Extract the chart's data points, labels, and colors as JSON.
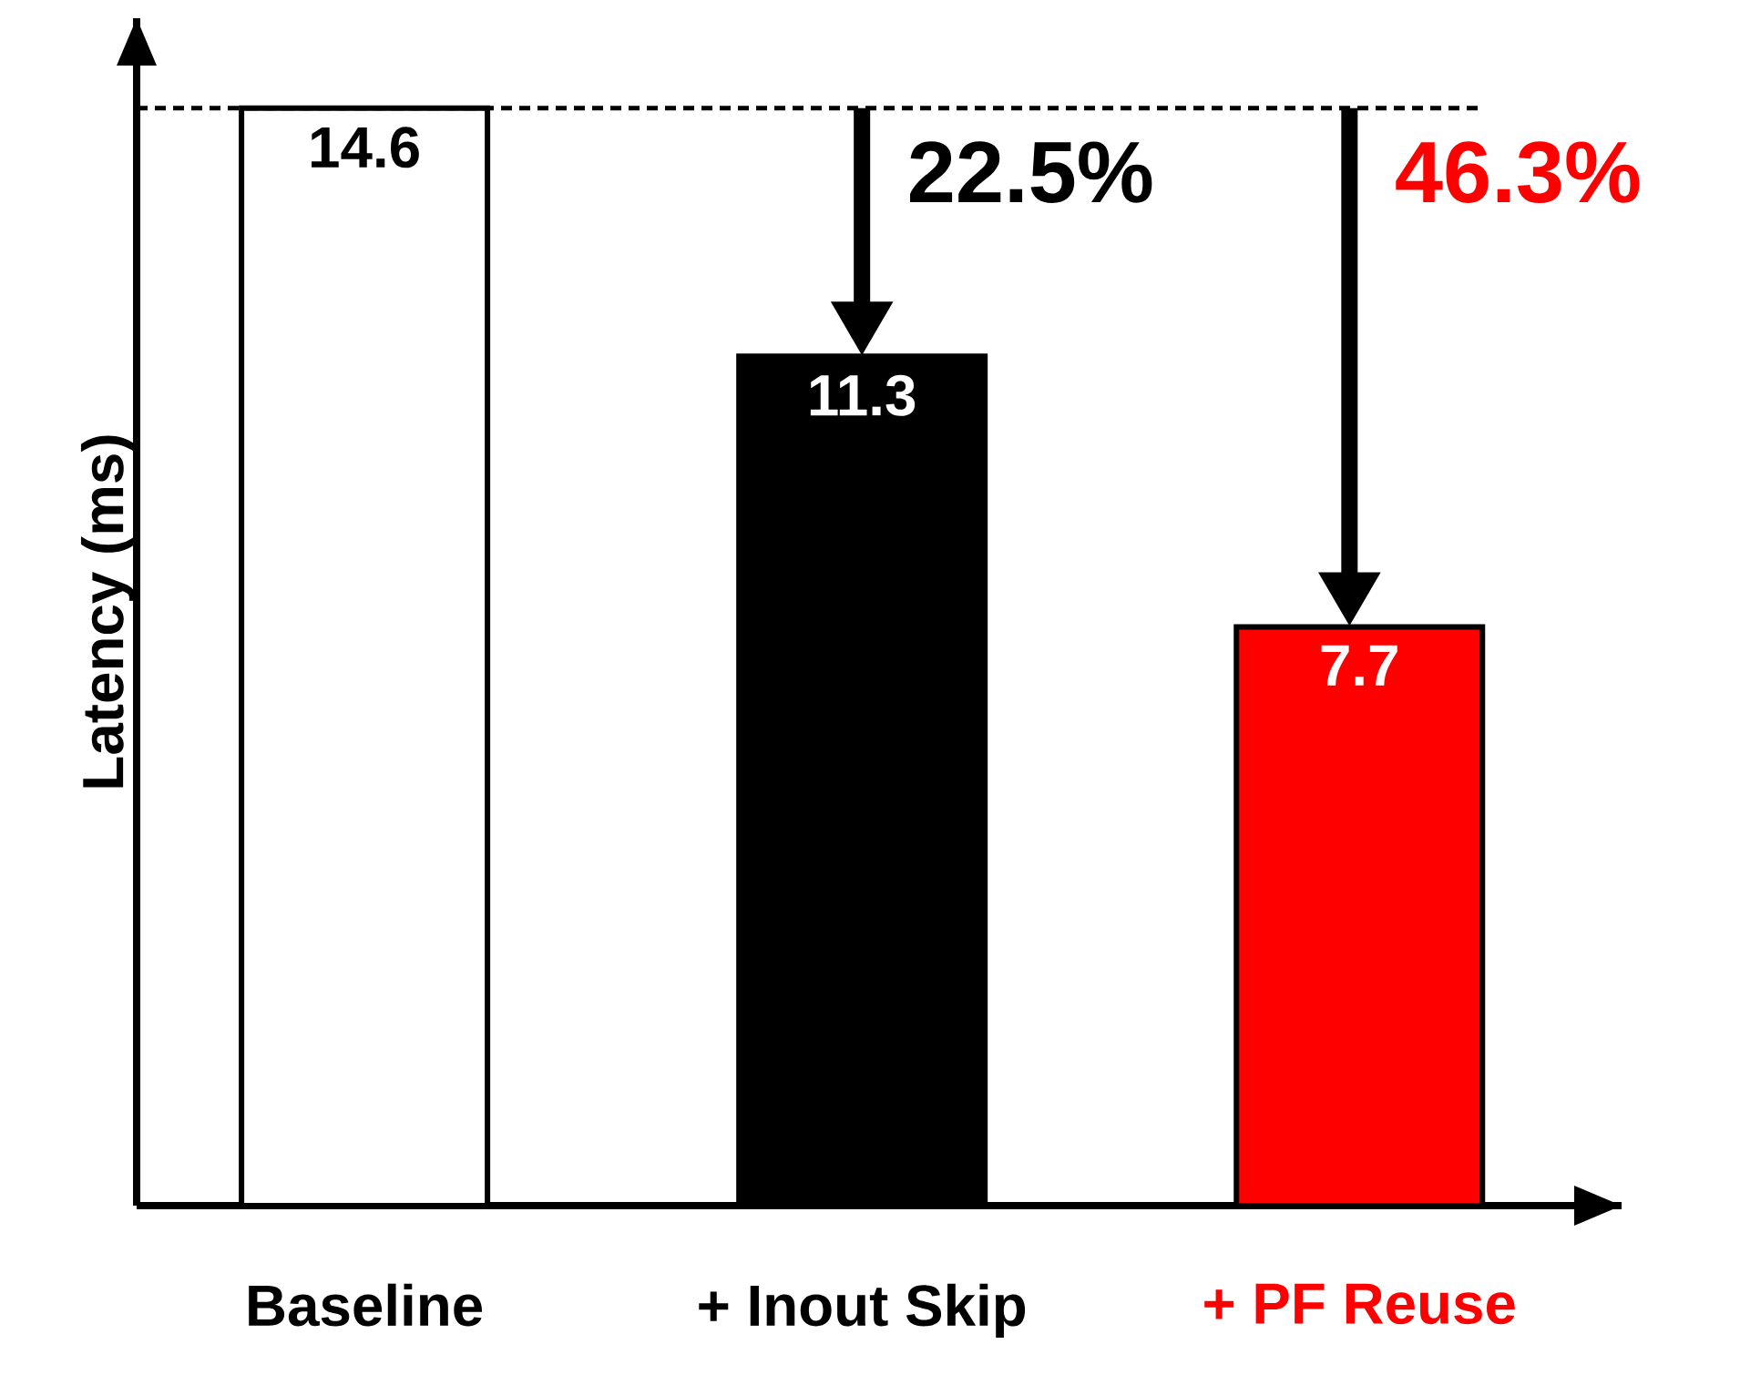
{
  "chart_data": {
    "type": "bar",
    "ylabel": "Latency (ms)",
    "categories": [
      "Baseline",
      "+ Inout Skip",
      "+ PF Reuse"
    ],
    "values": [
      14.6,
      11.3,
      7.7
    ],
    "colors": [
      "#ffffff",
      "#000000",
      "#ff0000"
    ],
    "data_labels": true,
    "tick_labels": "x",
    "ref_lines": [
      {
        "axis": "y",
        "value": 14.6,
        "line_style": "dashed"
      }
    ],
    "annotations": [
      "22.5%",
      "46.3%"
    ]
  }
}
